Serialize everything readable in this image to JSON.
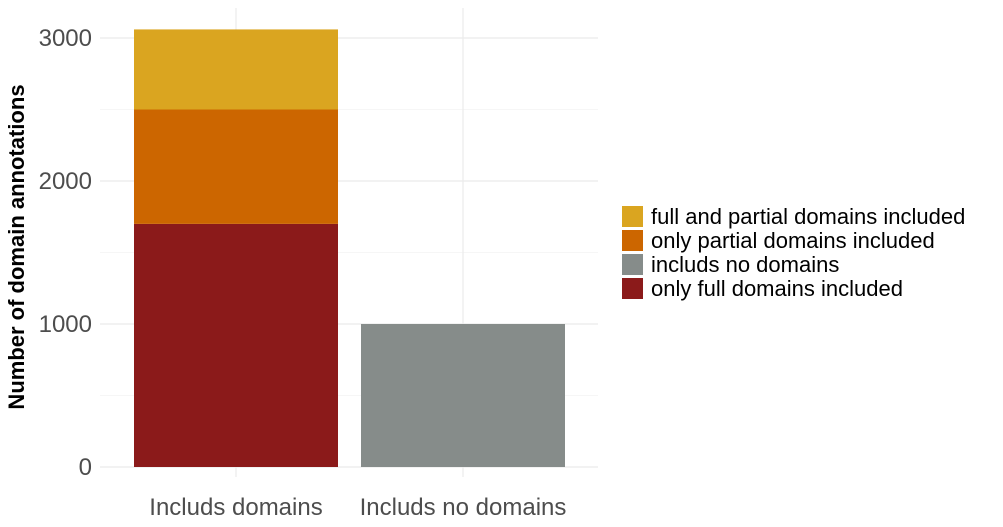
{
  "chart_data": {
    "type": "bar",
    "stacked": true,
    "categories": [
      "Includs domains",
      "Includs no domains"
    ],
    "series": [
      {
        "name": "only full domains included",
        "values": [
          1700,
          0
        ],
        "color": "#8B1A1A"
      },
      {
        "name": "only partial domains included",
        "values": [
          800,
          0
        ],
        "color": "#CC6600"
      },
      {
        "name": "full and partial domains included",
        "values": [
          560,
          0
        ],
        "color": "#DAA520"
      },
      {
        "name": "includs no domains",
        "values": [
          0,
          1000
        ],
        "color": "#868C8A"
      }
    ],
    "legend_order": [
      "full and partial domains included",
      "only partial domains included",
      "includs no domains",
      "only full domains included"
    ],
    "title": "",
    "xlabel": "",
    "ylabel": "Number of domain annotations",
    "ylim": [
      0,
      3150
    ],
    "yticks": [
      0,
      1000,
      2000,
      3000
    ],
    "grid": true,
    "legend_position": "right"
  }
}
